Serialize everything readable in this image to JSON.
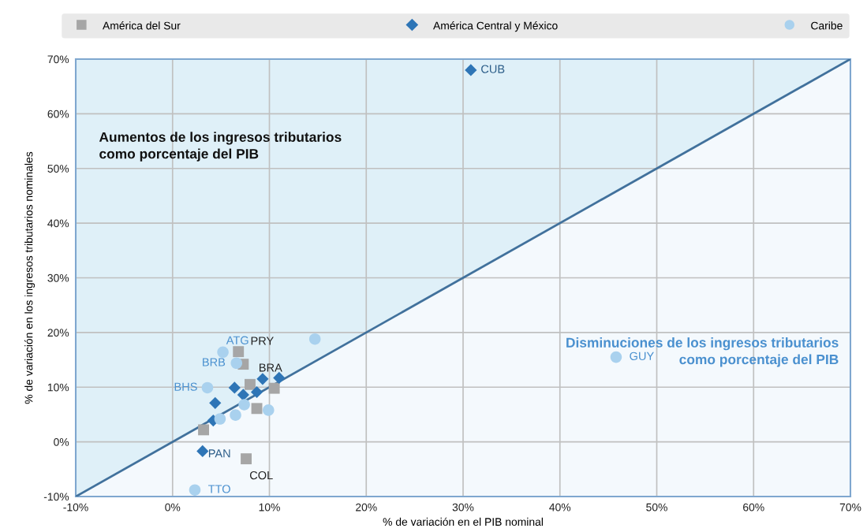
{
  "chart_data": {
    "type": "scatter",
    "xlabel": "% de variación en el PIB nominal",
    "ylabel": "% de variación en los ingresos tributarios nominales",
    "xlim": [
      -10,
      70
    ],
    "ylim": [
      -10,
      70
    ],
    "xticks": [
      {
        "value": -10,
        "label": "-10%"
      },
      {
        "value": 0,
        "label": "0%"
      },
      {
        "value": 10,
        "label": "10%"
      },
      {
        "value": 20,
        "label": "20%"
      },
      {
        "value": 30,
        "label": "30%"
      },
      {
        "value": 40,
        "label": "40%"
      },
      {
        "value": 50,
        "label": "50%"
      },
      {
        "value": 60,
        "label": "60%"
      },
      {
        "value": 70,
        "label": "70%"
      }
    ],
    "yticks": [
      {
        "value": -10,
        "label": "-10%"
      },
      {
        "value": 0,
        "label": "0%"
      },
      {
        "value": 10,
        "label": "10%"
      },
      {
        "value": 20,
        "label": "20%"
      },
      {
        "value": 30,
        "label": "30%"
      },
      {
        "value": 40,
        "label": "40%"
      },
      {
        "value": 50,
        "label": "50%"
      },
      {
        "value": 60,
        "label": "60%"
      },
      {
        "value": 70,
        "label": "70%"
      }
    ],
    "grid": true,
    "legend": "top",
    "series": [
      {
        "name": "América del Sur",
        "color": "#a6a6a6",
        "marker": "square",
        "x": [
          6.8,
          7.3,
          8.0,
          10.5,
          8.7,
          3.2,
          7.6
        ],
        "values": [
          16.5,
          14.2,
          10.5,
          9.8,
          6.1,
          2.2,
          -3.1
        ]
      },
      {
        "name": "América Central y México",
        "color": "#2e75b6",
        "marker": "diamond",
        "x": [
          30.8,
          9.3,
          11.0,
          6.4,
          7.3,
          8.7,
          4.4,
          4.2,
          3.1
        ],
        "values": [
          68.0,
          11.5,
          11.7,
          9.9,
          8.6,
          9.1,
          7.1,
          3.9,
          -1.7
        ]
      },
      {
        "name": "Caribe",
        "color": "#a9d1ee",
        "marker": "circle",
        "x": [
          45.8,
          14.7,
          5.2,
          6.6,
          3.6,
          7.4,
          4.9,
          6.5,
          9.9,
          2.3
        ],
        "values": [
          15.5,
          18.8,
          16.4,
          14.4,
          9.9,
          6.8,
          4.2,
          4.9,
          5.8,
          -8.8
        ]
      },
      {
        "type": "line",
        "color": "#41719c",
        "x": [
          -10,
          70
        ],
        "values": [
          -10,
          70
        ]
      }
    ],
    "annotations": [
      "Aumentos de los ingresos tributarios\ncomo porcentaje del PIB",
      "Disminuciones de los ingresos tributarios\ncomo porcentaje del PIB",
      {
        "text": "CUB",
        "x": 30.8,
        "y": 68.0
      },
      {
        "text": "ATG",
        "x": 5.2,
        "y": 16.4
      },
      {
        "text": "PRY",
        "x": 6.8,
        "y": 16.5
      },
      {
        "text": "BRB",
        "x": 6.6,
        "y": 14.4
      },
      {
        "text": "BRA",
        "x": 7.3,
        "y": 14.2
      },
      {
        "text": "BHS",
        "x": 3.6,
        "y": 9.9
      },
      {
        "text": "PAN",
        "x": 3.1,
        "y": -1.7
      },
      {
        "text": "COL",
        "x": 7.6,
        "y": -3.1
      },
      {
        "text": "TTO",
        "x": 2.3,
        "y": -8.8
      },
      {
        "text": "GUY",
        "x": 45.8,
        "y": 15.5
      }
    ]
  }
}
